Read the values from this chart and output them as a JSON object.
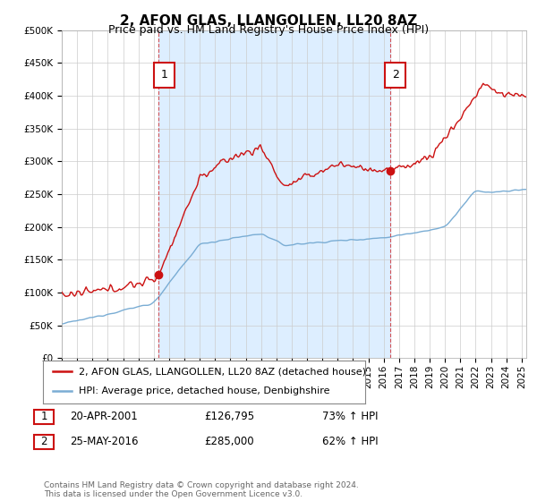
{
  "title": "2, AFON GLAS, LLANGOLLEN, LL20 8AZ",
  "subtitle": "Price paid vs. HM Land Registry's House Price Index (HPI)",
  "ylim": [
    0,
    500000
  ],
  "yticks": [
    0,
    50000,
    100000,
    150000,
    200000,
    250000,
    300000,
    350000,
    400000,
    450000,
    500000
  ],
  "xlim_start": 1995.0,
  "xlim_end": 2025.3,
  "hpi_color": "#7aadd4",
  "price_color": "#cc1111",
  "marker_color": "#cc1111",
  "shade_color": "#ddeeff",
  "grid_color": "#cccccc",
  "background_color": "#ffffff",
  "plot_bg_color": "#ffffff",
  "legend_label_price": "2, AFON GLAS, LLANGOLLEN, LL20 8AZ (detached house)",
  "legend_label_hpi": "HPI: Average price, detached house, Denbighshire",
  "transaction1_label": "1",
  "transaction1_date": "20-APR-2001",
  "transaction1_price": "£126,795",
  "transaction1_hpi": "73% ↑ HPI",
  "transaction1_x": 2001.3,
  "transaction1_y": 126795,
  "transaction2_label": "2",
  "transaction2_date": "25-MAY-2016",
  "transaction2_price": "£285,000",
  "transaction2_hpi": "62% ↑ HPI",
  "transaction2_x": 2016.4,
  "transaction2_y": 285000,
  "footer": "Contains HM Land Registry data © Crown copyright and database right 2024.\nThis data is licensed under the Open Government Licence v3.0.",
  "title_fontsize": 11,
  "subtitle_fontsize": 9,
  "tick_fontsize": 7.5,
  "legend_fontsize": 8,
  "footer_fontsize": 6.5
}
